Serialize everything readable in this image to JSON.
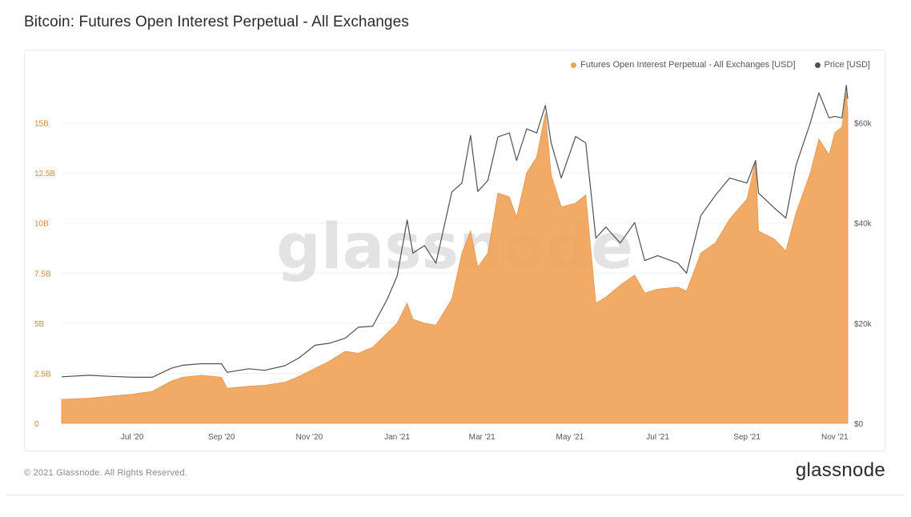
{
  "header": {
    "title": "Bitcoin: Futures Open Interest Perpetual - All Exchanges"
  },
  "footer": {
    "copyright": "© 2021 Glassnode. All Rights Reserved.",
    "brand": "glassnode"
  },
  "colors": {
    "oi": "#f0a45a",
    "price": "#505050",
    "oi_axis": "#d28a3c",
    "price_axis": "#555555",
    "grid": "#f1f1f1"
  },
  "chart_data": {
    "type": "area",
    "title": "Bitcoin: Futures Open Interest Perpetual - All Exchanges",
    "watermark": "glassnode",
    "grid": true,
    "legend_position": "top-right",
    "x_ticks": [
      "Jul '20",
      "Sep '20",
      "Nov '20",
      "Jan '21",
      "Mar '21",
      "May '21",
      "Jul '21",
      "Sep '21",
      "Nov '21"
    ],
    "x_tick_dates": [
      "2020-07-01",
      "2020-09-01",
      "2020-11-01",
      "2021-01-01",
      "2021-03-01",
      "2021-05-01",
      "2021-07-01",
      "2021-09-01",
      "2021-11-01"
    ],
    "x_range": [
      "2020-05-13",
      "2021-11-10"
    ],
    "y_left": {
      "ticks": [
        "0",
        "2.5B",
        "5B",
        "7.5B",
        "10B",
        "12.5B",
        "15B"
      ],
      "values": [
        0,
        2.5,
        5,
        7.5,
        10,
        12.5,
        15
      ],
      "unit": "B USD",
      "range": [
        0,
        17.5
      ]
    },
    "y_right": {
      "ticks": [
        "$0",
        "$20k",
        "$40k",
        "$60k"
      ],
      "values": [
        0,
        20,
        40,
        60
      ],
      "unit": "k USD",
      "range": [
        0,
        70
      ]
    },
    "series": [
      {
        "name": "Futures Open Interest Perpetual - All Exchanges [USD]",
        "axis": "left",
        "kind": "area",
        "points": [
          [
            "2020-05-13",
            1.2
          ],
          [
            "2020-06-01",
            1.25
          ],
          [
            "2020-06-15",
            1.35
          ],
          [
            "2020-07-01",
            1.45
          ],
          [
            "2020-07-15",
            1.6
          ],
          [
            "2020-07-28",
            2.1
          ],
          [
            "2020-08-05",
            2.3
          ],
          [
            "2020-08-18",
            2.4
          ],
          [
            "2020-09-01",
            2.3
          ],
          [
            "2020-09-05",
            1.75
          ],
          [
            "2020-09-20",
            1.85
          ],
          [
            "2020-10-01",
            1.9
          ],
          [
            "2020-10-15",
            2.05
          ],
          [
            "2020-10-25",
            2.35
          ],
          [
            "2020-11-05",
            2.75
          ],
          [
            "2020-11-15",
            3.1
          ],
          [
            "2020-11-26",
            3.6
          ],
          [
            "2020-12-05",
            3.5
          ],
          [
            "2020-12-15",
            3.8
          ],
          [
            "2020-12-25",
            4.5
          ],
          [
            "2021-01-01",
            5.0
          ],
          [
            "2021-01-08",
            6.0
          ],
          [
            "2021-01-12",
            5.2
          ],
          [
            "2021-01-20",
            5.0
          ],
          [
            "2021-01-28",
            4.9
          ],
          [
            "2021-02-08",
            6.2
          ],
          [
            "2021-02-15",
            8.5
          ],
          [
            "2021-02-21",
            9.6
          ],
          [
            "2021-02-26",
            7.8
          ],
          [
            "2021-03-05",
            8.5
          ],
          [
            "2021-03-12",
            11.5
          ],
          [
            "2021-03-20",
            11.3
          ],
          [
            "2021-03-25",
            10.3
          ],
          [
            "2021-04-01",
            12.5
          ],
          [
            "2021-04-08",
            13.3
          ],
          [
            "2021-04-14",
            15.5
          ],
          [
            "2021-04-18",
            12.4
          ],
          [
            "2021-04-25",
            10.8
          ],
          [
            "2021-05-05",
            11.0
          ],
          [
            "2021-05-12",
            11.4
          ],
          [
            "2021-05-19",
            6.0
          ],
          [
            "2021-05-26",
            6.3
          ],
          [
            "2021-06-05",
            6.9
          ],
          [
            "2021-06-15",
            7.4
          ],
          [
            "2021-06-22",
            6.5
          ],
          [
            "2021-07-01",
            6.7
          ],
          [
            "2021-07-15",
            6.8
          ],
          [
            "2021-07-21",
            6.6
          ],
          [
            "2021-07-31",
            8.5
          ],
          [
            "2021-08-10",
            9.0
          ],
          [
            "2021-08-20",
            10.2
          ],
          [
            "2021-09-01",
            11.2
          ],
          [
            "2021-09-07",
            13.1
          ],
          [
            "2021-09-09",
            9.6
          ],
          [
            "2021-09-20",
            9.2
          ],
          [
            "2021-09-28",
            8.6
          ],
          [
            "2021-10-05",
            10.5
          ],
          [
            "2021-10-15",
            12.5
          ],
          [
            "2021-10-21",
            14.2
          ],
          [
            "2021-10-28",
            13.4
          ],
          [
            "2021-11-01",
            14.5
          ],
          [
            "2021-11-06",
            14.8
          ],
          [
            "2021-11-09",
            16.5
          ],
          [
            "2021-11-10",
            15.6
          ]
        ]
      },
      {
        "name": "Price [USD]",
        "axis": "right",
        "kind": "line",
        "points": [
          [
            "2020-05-13",
            9.3
          ],
          [
            "2020-06-01",
            9.6
          ],
          [
            "2020-06-15",
            9.4
          ],
          [
            "2020-07-01",
            9.2
          ],
          [
            "2020-07-15",
            9.2
          ],
          [
            "2020-07-28",
            11.0
          ],
          [
            "2020-08-05",
            11.6
          ],
          [
            "2020-08-18",
            11.9
          ],
          [
            "2020-09-01",
            11.9
          ],
          [
            "2020-09-05",
            10.2
          ],
          [
            "2020-09-20",
            10.9
          ],
          [
            "2020-10-01",
            10.6
          ],
          [
            "2020-10-15",
            11.5
          ],
          [
            "2020-10-25",
            13.1
          ],
          [
            "2020-11-05",
            15.6
          ],
          [
            "2020-11-15",
            16.0
          ],
          [
            "2020-11-26",
            17.0
          ],
          [
            "2020-12-05",
            19.2
          ],
          [
            "2020-12-15",
            19.4
          ],
          [
            "2020-12-25",
            24.7
          ],
          [
            "2021-01-01",
            29.4
          ],
          [
            "2021-01-08",
            40.6
          ],
          [
            "2021-01-12",
            34.0
          ],
          [
            "2021-01-20",
            35.5
          ],
          [
            "2021-01-28",
            32.0
          ],
          [
            "2021-02-08",
            46.2
          ],
          [
            "2021-02-15",
            48.0
          ],
          [
            "2021-02-21",
            57.5
          ],
          [
            "2021-02-26",
            46.3
          ],
          [
            "2021-03-05",
            48.5
          ],
          [
            "2021-03-12",
            57.2
          ],
          [
            "2021-03-20",
            58.0
          ],
          [
            "2021-03-25",
            52.5
          ],
          [
            "2021-04-01",
            58.8
          ],
          [
            "2021-04-08",
            58.0
          ],
          [
            "2021-04-14",
            63.5
          ],
          [
            "2021-04-18",
            56.0
          ],
          [
            "2021-04-25",
            49.0
          ],
          [
            "2021-05-05",
            57.3
          ],
          [
            "2021-05-12",
            56.0
          ],
          [
            "2021-05-19",
            37.0
          ],
          [
            "2021-05-26",
            39.2
          ],
          [
            "2021-06-05",
            36.0
          ],
          [
            "2021-06-15",
            40.1
          ],
          [
            "2021-06-22",
            32.5
          ],
          [
            "2021-07-01",
            33.5
          ],
          [
            "2021-07-15",
            32.0
          ],
          [
            "2021-07-21",
            30.0
          ],
          [
            "2021-07-31",
            41.5
          ],
          [
            "2021-08-10",
            45.5
          ],
          [
            "2021-08-20",
            49.0
          ],
          [
            "2021-09-01",
            48.0
          ],
          [
            "2021-09-07",
            52.5
          ],
          [
            "2021-09-09",
            46.0
          ],
          [
            "2021-09-20",
            43.0
          ],
          [
            "2021-09-28",
            41.0
          ],
          [
            "2021-10-05",
            51.5
          ],
          [
            "2021-10-15",
            60.0
          ],
          [
            "2021-10-21",
            66.0
          ],
          [
            "2021-10-28",
            61.0
          ],
          [
            "2021-11-01",
            61.3
          ],
          [
            "2021-11-06",
            61.0
          ],
          [
            "2021-11-09",
            67.5
          ],
          [
            "2021-11-10",
            64.8
          ]
        ]
      }
    ]
  }
}
